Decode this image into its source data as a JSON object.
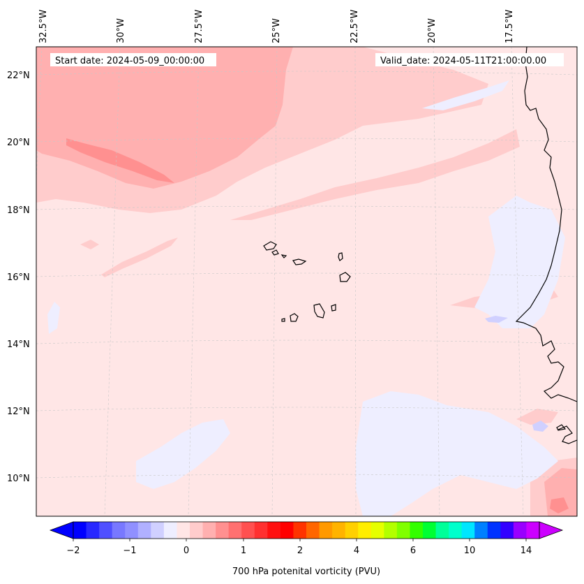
{
  "header": {
    "start_date": "Start date: 2024-05-09_00:00:00",
    "valid_date": "Valid_date: 2024-05-11T21:00:00.00"
  },
  "map": {
    "lon_labels": [
      "32.5°W",
      "30°W",
      "27.5°W",
      "25°W",
      "22.5°W",
      "20°W",
      "17.5°W"
    ],
    "lat_labels": [
      "22°N",
      "20°N",
      "18°N",
      "16°N",
      "14°N",
      "12°N",
      "10°N"
    ],
    "background_color": "#ffe6e6"
  },
  "colorbar": {
    "label": "700 hPa potenital vorticity (PVU)",
    "ticks": [
      "−2",
      "−1",
      "0",
      "1",
      "2",
      "4",
      "6",
      "10",
      "14"
    ],
    "colors": [
      "#0000ff",
      "#2828ff",
      "#5050ff",
      "#7878ff",
      "#9090ff",
      "#b0b0ff",
      "#d0d0ff",
      "#eeeeff",
      "#ffe6e6",
      "#ffcccc",
      "#ffb0b0",
      "#ff9090",
      "#ff7070",
      "#ff5050",
      "#ff3030",
      "#ff1010",
      "#ff0000",
      "#ff3300",
      "#ff6600",
      "#ff9900",
      "#ffb300",
      "#ffd000",
      "#ffee00",
      "#e6ff00",
      "#b3ff00",
      "#80ff00",
      "#33ff00",
      "#00ff33",
      "#00ff99",
      "#00ffcc",
      "#00e6ff",
      "#0080ff",
      "#0033ff",
      "#3300ff",
      "#9900ff",
      "#cc00ff"
    ],
    "min_color": "#0000ff",
    "max_color": "#cc00ff"
  }
}
